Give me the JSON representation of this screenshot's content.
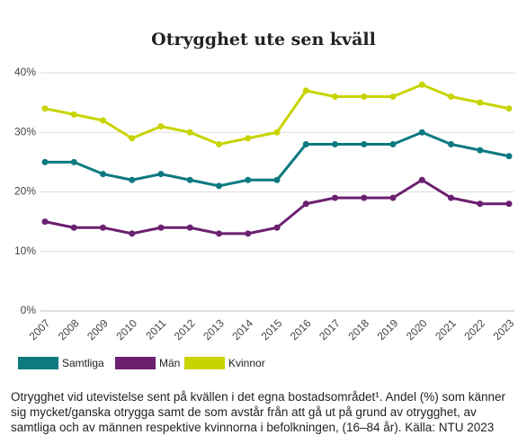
{
  "chart_data": {
    "type": "line",
    "title": "Otrygghet ute sen kväll",
    "categories": [
      "2007",
      "2008",
      "2009",
      "2010",
      "2011",
      "2012",
      "2013",
      "2014",
      "2015",
      "2016",
      "2017",
      "2018",
      "2019",
      "2020",
      "2021",
      "2022",
      "2023"
    ],
    "series": [
      {
        "name": "Samtliga",
        "color": "#0d7a80",
        "values": [
          25,
          25,
          23,
          22,
          23,
          22,
          21,
          22,
          22,
          28,
          28,
          28,
          28,
          30,
          28,
          27,
          26
        ]
      },
      {
        "name": "Män",
        "color": "#6b2070",
        "values": [
          15,
          14,
          14,
          13,
          14,
          14,
          13,
          13,
          14,
          18,
          19,
          19,
          19,
          22,
          19,
          18,
          18
        ]
      },
      {
        "name": "Kvinnor",
        "color": "#c8d400",
        "values": [
          34,
          33,
          32,
          29,
          31,
          30,
          28,
          29,
          30,
          37,
          36,
          36,
          36,
          38,
          36,
          35,
          34
        ]
      }
    ],
    "ylim": [
      0,
      40
    ],
    "yticks": [
      {
        "value": 0,
        "label": "0%"
      },
      {
        "value": 10,
        "label": "10%"
      },
      {
        "value": 20,
        "label": "20%"
      },
      {
        "value": 30,
        "label": "30%"
      },
      {
        "value": 40,
        "label": "40%"
      }
    ],
    "grid": true,
    "caption": "Otrygghet vid utevistelse sent på kvällen i det egna bostadsområdet¹. Andel (%) som känner sig mycket/ganska otrygga samt de som avstår från att gå ut på grund av otrygghet, av samtliga och av männen respektive kvinnorna i befolkningen, (16–84 år). Källa: NTU 2023"
  }
}
